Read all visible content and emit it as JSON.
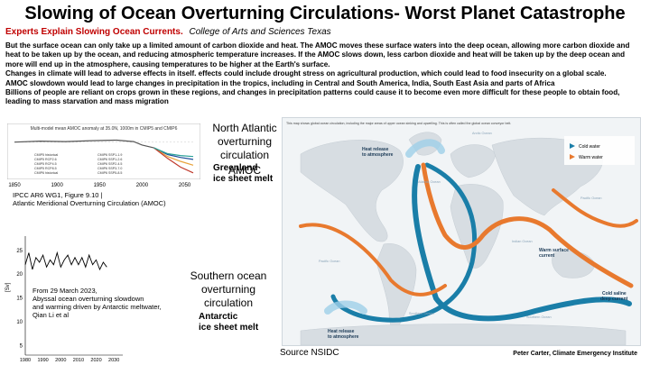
{
  "slide": {
    "title": "Slowing of Ocean Overturning Circulations- Worst Planet Catastrophe",
    "subtitle_red": "Experts Explain Slowing Ocean Currents.",
    "subtitle_italic": "College of Arts and Sciences Texas",
    "paragraphs": [
      "But the surface ocean can only take up a limited amount of carbon dioxide and heat. The AMOC moves these surface waters into the deep ocean, allowing more carbon dioxide and heat to be taken up by the ocean, and reducing atmospheric temperature increases. If the AMOC slows down, less carbon dioxide and heat will be taken up by the deep ocean and more will end up in the atmosphere, causing temperatures to be higher at the Earth's surface.",
      "Changes in climate will lead to adverse effects in itself. effects could include drought stress on agricultural production, which could lead to food insecurity on a global scale.",
      "AMOC slowdown would lead to large changes in precipitation in the tropics, including in Central and South America, India, South East Asia and parts of Africa",
      "Billions of people are reliant on crops grown in these regions, and changes in precipitation patterns could cause it to become even more difficult for these people to obtain food, leading to mass starvation and mass migration"
    ],
    "ipcc_caption_1": "IPCC AR6 WG1, Figure 9.10 |",
    "ipcc_caption_2": "Atlantic Meridional Overturning Circulation (AMOC)",
    "north_label": "North Atlantic overturning circulation",
    "amoc_label": "AMOC",
    "greenland_1": "Greenland",
    "greenland_2": "ice sheet melt",
    "southern_label": "Southern ocean overturning circulation",
    "antarctic_1": "Antarctic",
    "antarctic_2": "ice sheet melt",
    "li_caption": [
      "From 29 March 2023,",
      "Abyssal ocean overturning slowdown",
      "and warming driven by Antarctic meltwater,",
      "Qian Li et al"
    ],
    "source": "Source NSIDC",
    "credit": "Peter Carter, Climate Emergency Institute"
  },
  "map": {
    "header": "This map shows global ocean circulation, including the major areas of upper ocean sinking and upwelling. This is often called the global ocean conveyor belt.",
    "legend_cold": "Cold water",
    "legend_warm": "Warm water",
    "heat_release_top": [
      "Heat release",
      "to atmosphere"
    ],
    "heat_release_bottom": [
      "Heat release",
      "to atmosphere"
    ],
    "warm_surface": [
      "Warm surface",
      "current"
    ],
    "cold_saline": [
      "Cold saline",
      "deep current"
    ],
    "oceans": [
      "Arctic Ocean",
      "Atlantic Ocean",
      "Pacific Ocean",
      "Indian Ocean",
      "Pacific Ocean",
      "Southern Ocean",
      "Southern Ocean"
    ],
    "colors": {
      "cold": "#1a7ea8",
      "warm": "#e8792e"
    }
  },
  "chart_data": [
    {
      "type": "line",
      "title": "Multi-model mean AMOC anomaly at 35.0N, 1000m in CMIP5 and CMIP6",
      "x_ticks": [
        1850,
        1900,
        1950,
        2000,
        2050
      ],
      "xlim": [
        1850,
        2060
      ],
      "legend": [
        "CMIP5 historical",
        "CMIP5 RCP2.6",
        "CMIP5 RCP4.5",
        "CMIP5 RCP8.5",
        "CMIP6 historical",
        "CMIP6 SSP1-1.9",
        "CMIP6 SSP1-2.6",
        "CMIP6 SSP2-4.5",
        "CMIP6 SSP3-7.0",
        "CMIP6 SSP5-8.5"
      ],
      "series": [
        {
          "name": "CMIP6 historical",
          "color": "#555555",
          "x": [
            1850,
            1880,
            1910,
            1940,
            1970,
            1990,
            2000,
            2014
          ],
          "y": [
            0.0,
            0.1,
            0.05,
            0.15,
            0.2,
            0.05,
            -0.3,
            -0.6
          ]
        },
        {
          "name": "CMIP6 SSP1-2.6",
          "color": "#1f4e9a",
          "x": [
            2014,
            2030,
            2045,
            2060
          ],
          "y": [
            -0.6,
            -1.3,
            -1.6,
            -1.8
          ]
        },
        {
          "name": "CMIP6 SSP2-4.5",
          "color": "#e8a23a",
          "x": [
            2014,
            2030,
            2045,
            2060
          ],
          "y": [
            -0.6,
            -1.5,
            -2.0,
            -2.4
          ]
        },
        {
          "name": "CMIP6 SSP5-8.5",
          "color": "#c0392b",
          "x": [
            2014,
            2030,
            2045,
            2060
          ],
          "y": [
            -0.6,
            -1.7,
            -2.6,
            -3.2
          ]
        },
        {
          "name": "CMIP6 SSP1-1.9",
          "color": "#2aa198",
          "x": [
            2014,
            2030,
            2045,
            2060
          ],
          "y": [
            -0.6,
            -1.2,
            -1.4,
            -1.5
          ]
        }
      ],
      "ylim": [
        -3.5,
        1
      ]
    },
    {
      "type": "line",
      "ylabel": "[Sv]",
      "x_ticks": [
        1980,
        1990,
        2000,
        2010,
        2020,
        2030
      ],
      "y_ticks": [
        5,
        10,
        15,
        20,
        25
      ],
      "xlim": [
        1980,
        2035
      ],
      "ylim": [
        3,
        28
      ],
      "series": [
        {
          "x": [
            1980,
            1982,
            1984,
            1986,
            1988,
            1990,
            1992,
            1994,
            1996,
            1998,
            2000,
            2002,
            2004,
            2006,
            2008,
            2010,
            2012,
            2014,
            2016,
            2018,
            2020,
            2022,
            2024,
            2026
          ],
          "y": [
            22,
            24.5,
            21,
            23.5,
            22.5,
            24,
            21.5,
            23,
            22,
            24.5,
            21.5,
            23,
            24,
            22,
            23.5,
            22,
            23.5,
            21.5,
            24,
            22,
            23,
            21,
            22.5,
            21.5
          ]
        }
      ]
    }
  ]
}
